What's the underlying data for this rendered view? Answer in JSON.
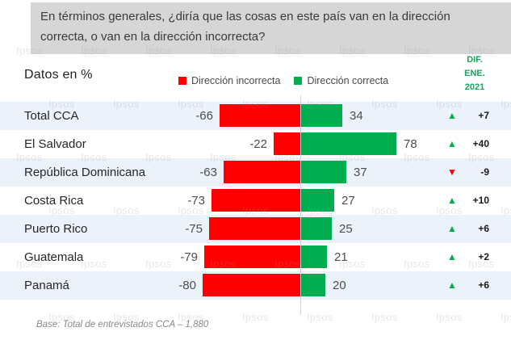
{
  "header": {
    "data_note": "Datos en %",
    "dif_column": "DIF.\nENE.\n2021"
  },
  "legend": [
    {
      "label": "Dirección incorrecta",
      "color": "#fe0000"
    },
    {
      "label": "Dirección correcta",
      "color": "#00ae4f"
    }
  ],
  "footer": {
    "base_note": "Base: Total de entrevistados CCA – 1,880"
  },
  "watermark": "Ipsos",
  "colors": {
    "incorrect": "#fe0000",
    "correct": "#00ae4f",
    "trend_up": "#00ae4f",
    "trend_down": "#fe0000",
    "row_stripe": "#ebf2fa"
  },
  "chart_data": {
    "type": "bar",
    "orientation": "horizontal-diverging",
    "unit": "%",
    "title": "En términos generales, ¿diría que las cosas en este país van en la dirección correcta, o van en la dirección incorrecta?",
    "categories": [
      "Total CCA",
      "El Salvador",
      "República Dominicana",
      "Costa Rica",
      "Puerto Rico",
      "Guatemala",
      "Panamá"
    ],
    "series": [
      {
        "name": "Dirección incorrecta",
        "color": "#fe0000",
        "values": [
          -66,
          -22,
          -63,
          -73,
          -75,
          -79,
          -80
        ]
      },
      {
        "name": "Dirección correcta",
        "color": "#00ae4f",
        "values": [
          34,
          78,
          37,
          27,
          25,
          21,
          20
        ]
      }
    ],
    "diff_vs_ene_2021": [
      {
        "category": "Total CCA",
        "value": "+7",
        "trend": "up"
      },
      {
        "category": "El Salvador",
        "value": "+40",
        "trend": "up"
      },
      {
        "category": "República Dominicana",
        "value": "-9",
        "trend": "down"
      },
      {
        "category": "Costa Rica",
        "value": "+10",
        "trend": "up"
      },
      {
        "category": "Puerto Rico",
        "value": "+6",
        "trend": "up"
      },
      {
        "category": "Guatemala",
        "value": "+2",
        "trend": "up"
      },
      {
        "category": "Panamá",
        "value": "+6",
        "trend": "up"
      }
    ],
    "xlim": [
      -100,
      100
    ],
    "legend_position": "top",
    "grid": false
  }
}
